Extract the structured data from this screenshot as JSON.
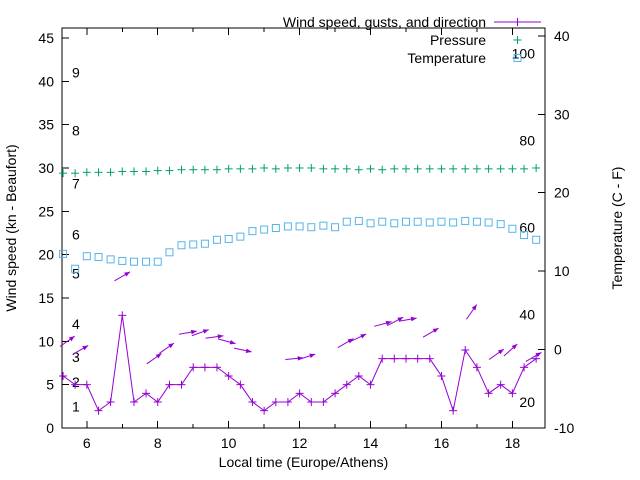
{
  "chart_data": {
    "type": "line",
    "title": "",
    "xlabel": "Local time (Europe/Athens)",
    "ylabel": "Wind speed (kn - Beaufort)",
    "y2label": "Temperature (C - F)",
    "background": "#ffffff",
    "text_color": "#000000",
    "border_color": "#000000",
    "legend_position": "top-right-inside",
    "grid": false,
    "xlim": [
      5.3,
      18.92
    ],
    "ylim": [
      0,
      46.15
    ],
    "y2lim": [
      -10,
      41
    ],
    "xticks": [
      6,
      8,
      10,
      12,
      14,
      16,
      18
    ],
    "xminor": [
      7,
      9,
      11,
      13,
      15,
      17
    ],
    "yticks": [
      0,
      5,
      10,
      15,
      20,
      25,
      30,
      35,
      40,
      45
    ],
    "y2ticks": [
      -10,
      0,
      10,
      20,
      30,
      40
    ],
    "beaufort_labels": [
      {
        "label": "1",
        "kn": 2.5
      },
      {
        "label": "2",
        "kn": 5.3
      },
      {
        "label": "3",
        "kn": 8.2
      },
      {
        "label": "4",
        "kn": 12
      },
      {
        "label": "5",
        "kn": 17.8
      },
      {
        "label": "6",
        "kn": 22.3
      },
      {
        "label": "7",
        "kn": 28.2
      },
      {
        "label": "8",
        "kn": 34.3
      },
      {
        "label": "9",
        "kn": 41
      }
    ],
    "fahrenheit_labels": [
      {
        "label": "20",
        "f": 20
      },
      {
        "label": "40",
        "f": 40
      },
      {
        "label": "60",
        "f": 60
      },
      {
        "label": "80",
        "f": 80
      },
      {
        "label": "100",
        "f": 100
      }
    ],
    "x": [
      5.33,
      5.67,
      6,
      6.33,
      6.67,
      7,
      7.33,
      7.67,
      8,
      8.33,
      8.67,
      9,
      9.33,
      9.67,
      10,
      10.33,
      10.67,
      11,
      11.33,
      11.67,
      12,
      12.33,
      12.67,
      13,
      13.33,
      13.67,
      14,
      14.33,
      14.67,
      15,
      15.33,
      15.67,
      16,
      16.33,
      16.67,
      17,
      17.33,
      17.67,
      18,
      18.33,
      18.67
    ],
    "series": [
      {
        "name": "Wind speed, gusts, and direction",
        "color": "#9400d3",
        "axis": "y1",
        "marker": "plus",
        "line": true,
        "values": [
          6,
          5,
          5,
          2,
          3,
          13,
          3,
          4,
          3,
          5,
          5,
          7,
          7,
          7,
          6,
          5,
          3,
          2,
          3,
          3,
          4,
          3,
          3,
          4,
          5,
          6,
          5,
          8,
          8,
          8,
          8,
          8,
          6,
          2,
          9,
          7,
          4,
          5,
          4,
          7,
          8
        ]
      },
      {
        "name": "Pressure",
        "color": "#009e73",
        "axis": "y1",
        "marker": "plus",
        "line": false,
        "values": [
          29.4,
          29.4,
          29.5,
          29.5,
          29.5,
          29.6,
          29.6,
          29.6,
          29.7,
          29.7,
          29.8,
          29.8,
          29.8,
          29.8,
          29.9,
          29.9,
          29.9,
          30,
          29.9,
          30,
          30,
          30,
          29.9,
          29.9,
          29.9,
          29.8,
          29.9,
          29.8,
          29.9,
          29.9,
          29.9,
          29.9,
          29.9,
          29.9,
          29.9,
          29.9,
          29.9,
          29.9,
          29.9,
          29.9,
          30
        ]
      },
      {
        "name": "Temperature",
        "color": "#56b4e9",
        "axis": "y2",
        "marker": "square",
        "line": false,
        "values": [
          12.2,
          10.3,
          11.9,
          11.8,
          11.5,
          11.3,
          11.2,
          11.2,
          11.2,
          12.4,
          13.3,
          13.4,
          13.5,
          14,
          14.1,
          14.4,
          15.1,
          15.3,
          15.5,
          15.7,
          15.7,
          15.6,
          15.8,
          15.6,
          16.3,
          16.4,
          16.1,
          16.3,
          16.1,
          16.3,
          16.3,
          16.2,
          16.3,
          16.2,
          16.4,
          16.3,
          16.2,
          16,
          15.4,
          14.6,
          14
        ]
      }
    ],
    "gust_arrows": [
      {
        "t": 5.45,
        "kn": 10,
        "angle": 35
      },
      {
        "t": 5.82,
        "kn": 9,
        "angle": 30
      },
      {
        "t": 7.0,
        "kn": 17.5,
        "angle": 30
      },
      {
        "t": 7.9,
        "kn": 8,
        "angle": 35
      },
      {
        "t": 8.25,
        "kn": 9.2,
        "angle": 35
      },
      {
        "t": 8.85,
        "kn": 11,
        "angle": 10
      },
      {
        "t": 9.2,
        "kn": 11,
        "angle": 20
      },
      {
        "t": 9.6,
        "kn": 10.5,
        "angle": 8
      },
      {
        "t": 9.95,
        "kn": 10,
        "angle": -15
      },
      {
        "t": 10.4,
        "kn": 9,
        "angle": -12
      },
      {
        "t": 11.85,
        "kn": 8,
        "angle": 5
      },
      {
        "t": 12.2,
        "kn": 8.2,
        "angle": 18
      },
      {
        "t": 13.3,
        "kn": 9.8,
        "angle": 30
      },
      {
        "t": 13.65,
        "kn": 10.4,
        "angle": 25
      },
      {
        "t": 14.35,
        "kn": 12,
        "angle": 15
      },
      {
        "t": 14.7,
        "kn": 12.3,
        "angle": 28
      },
      {
        "t": 15.05,
        "kn": 12.5,
        "angle": 10
      },
      {
        "t": 15.7,
        "kn": 11,
        "angle": 30
      },
      {
        "t": 16.85,
        "kn": 13.4,
        "angle": 55
      },
      {
        "t": 17.55,
        "kn": 8.5,
        "angle": 35
      },
      {
        "t": 17.95,
        "kn": 9,
        "angle": 42
      },
      {
        "t": 18.6,
        "kn": 8.2,
        "angle": 30
      }
    ]
  }
}
